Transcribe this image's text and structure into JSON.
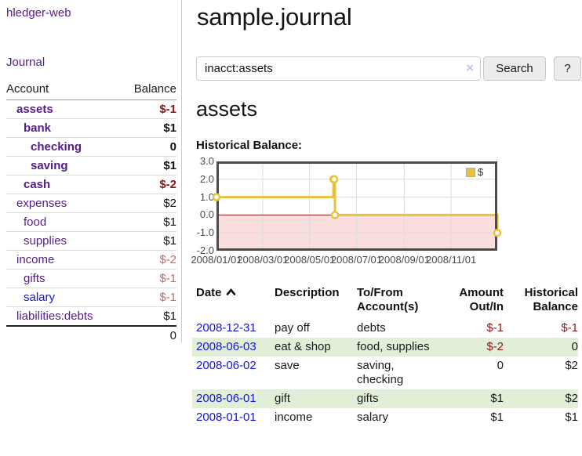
{
  "brand": "hledger-web",
  "nav": {
    "journal_label": "Journal"
  },
  "sidebar": {
    "columns": {
      "account": "Account",
      "balance": "Balance"
    },
    "accounts": [
      {
        "name": "assets",
        "depth": 0,
        "row_class": "bold",
        "balance": "$-1",
        "balance_class": "neg-strong"
      },
      {
        "name": "bank",
        "depth": 1,
        "row_class": "bold",
        "balance": "$1",
        "balance_class": "pos"
      },
      {
        "name": "checking",
        "depth": 2,
        "row_class": "bold",
        "balance": "0",
        "balance_class": "pos"
      },
      {
        "name": "saving",
        "depth": 2,
        "row_class": "bold",
        "balance": "$1",
        "balance_class": "pos"
      },
      {
        "name": "cash",
        "depth": 1,
        "row_class": "bold",
        "balance": "$-2",
        "balance_class": "neg-strong"
      },
      {
        "name": "expenses",
        "depth": 0,
        "row_class": "",
        "balance": "$2",
        "balance_class": "pos"
      },
      {
        "name": "food",
        "depth": 1,
        "row_class": "",
        "balance": "$1",
        "balance_class": "pos"
      },
      {
        "name": "supplies",
        "depth": 1,
        "row_class": "",
        "balance": "$1",
        "balance_class": "pos"
      },
      {
        "name": "income",
        "depth": 0,
        "row_class": "",
        "balance": "$-2",
        "balance_class": "neg-soft"
      },
      {
        "name": "gifts",
        "depth": 1,
        "row_class": "",
        "balance": "$-1",
        "balance_class": "neg-soft"
      },
      {
        "name": "salary",
        "depth": 1,
        "row_class": "",
        "link_class": "lnk-blue",
        "balance": "$-1",
        "balance_class": "neg-soft"
      },
      {
        "name": "liabilities:debts",
        "depth": 0,
        "row_class": "",
        "balance": "$1",
        "balance_class": "pos"
      }
    ],
    "total": "0"
  },
  "header": {
    "title": "sample.journal"
  },
  "search": {
    "value": "inacct:assets",
    "clear_icon": "×",
    "button_label": "Search",
    "help_label": "?"
  },
  "account_page": {
    "heading": "assets",
    "chart_title": "Historical Balance:"
  },
  "chart_data": {
    "type": "line",
    "title": "Historical Balance:",
    "step": true,
    "series": [
      {
        "name": "$",
        "color": "#e9c23d",
        "points": [
          [
            "2008-01-01",
            1
          ],
          [
            "2008-06-01",
            2
          ],
          [
            "2008-06-02",
            2
          ],
          [
            "2008-06-03",
            0
          ],
          [
            "2008-12-31",
            -1
          ]
        ]
      }
    ],
    "xlim": [
      "2008-01-01",
      "2008-12-31"
    ],
    "ylim": [
      -2,
      3
    ],
    "y_ticks": [
      {
        "value": 3,
        "label": "3.0"
      },
      {
        "value": 2,
        "label": "2.0"
      },
      {
        "value": 1,
        "label": "1.0"
      },
      {
        "value": 0,
        "label": "0.0"
      },
      {
        "value": -1,
        "label": "-1.0"
      },
      {
        "value": -2,
        "label": "-2.0"
      }
    ],
    "x_ticks": [
      {
        "date": "2008-01-01",
        "label": "2008/01/01"
      },
      {
        "date": "2008-03-01",
        "label": "2008/03/01"
      },
      {
        "date": "2008-05-01",
        "label": "2008/05/01"
      },
      {
        "date": "2008-07-01",
        "label": "2008/07/01"
      },
      {
        "date": "2008-09-01",
        "label": "2008/09/01"
      },
      {
        "date": "2008-11-01",
        "label": "2008/11/01"
      }
    ],
    "grid": true,
    "zero_line_color": "#8c1a1a",
    "negative_region_color": "#fadddd",
    "legend": {
      "label": "$",
      "position": "top-right"
    }
  },
  "register": {
    "columns": {
      "date": "Date",
      "description": "Description",
      "accounts": "To/From\nAccount(s)",
      "amount": "Amount\nOut/In",
      "balance": "Historical\nBalance"
    },
    "sort": {
      "column": "date",
      "direction": "ascending"
    },
    "rows": [
      {
        "date": "2008-12-31",
        "description": "pay off",
        "accounts": "debts",
        "amount": "$-1",
        "amount_class": "neg",
        "balance": "$-1",
        "balance_class": "neg"
      },
      {
        "date": "2008-06-03",
        "description": "eat & shop",
        "accounts": "food, supplies",
        "amount": "$-2",
        "amount_class": "neg",
        "balance": "0",
        "balance_class": ""
      },
      {
        "date": "2008-06-02",
        "description": "save",
        "accounts": "saving, checking",
        "amount": "0",
        "amount_class": "",
        "balance": "$2",
        "balance_class": ""
      },
      {
        "date": "2008-06-01",
        "description": "gift",
        "accounts": "gifts",
        "amount": "$1",
        "amount_class": "",
        "balance": "$2",
        "balance_class": ""
      },
      {
        "date": "2008-01-01",
        "description": "income",
        "accounts": "salary",
        "amount": "$1",
        "amount_class": "",
        "balance": "$1",
        "balance_class": ""
      }
    ]
  }
}
